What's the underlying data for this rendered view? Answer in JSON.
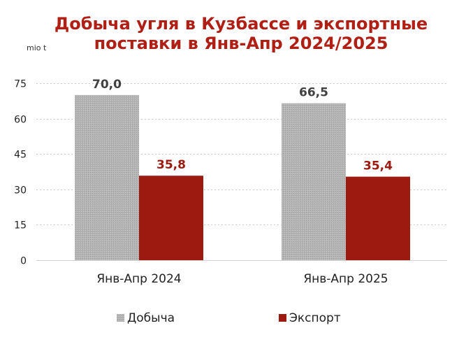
{
  "chart_data": {
    "type": "bar",
    "title": "Добыча угля в Кузбассе и экспортные поставки в Янв-Апр 2024/2025",
    "title_lines": [
      "Добыча угля в Кузбассе и экспортные",
      "поставки в Янв-Апр 2024/2025"
    ],
    "unit_label": "mio t",
    "categories": [
      "Янв-Апр 2024",
      "Янв-Апр 2025"
    ],
    "series": [
      {
        "name": "Добыча",
        "values": [
          70.0,
          66.5
        ],
        "labels": [
          "70,0",
          "66,5"
        ],
        "color": "#a9a9a9",
        "label_color": "#404040"
      },
      {
        "name": "Экспорт",
        "values": [
          35.8,
          35.4
        ],
        "labels": [
          "35,8",
          "35,4"
        ],
        "color": "#9c1a10",
        "label_color": "#9c1a10"
      }
    ],
    "ylim": [
      0,
      75
    ],
    "yticks": [
      0,
      15,
      30,
      45,
      60,
      75
    ],
    "grid": true,
    "legend_position": "bottom",
    "title_color": "#b01e14"
  }
}
